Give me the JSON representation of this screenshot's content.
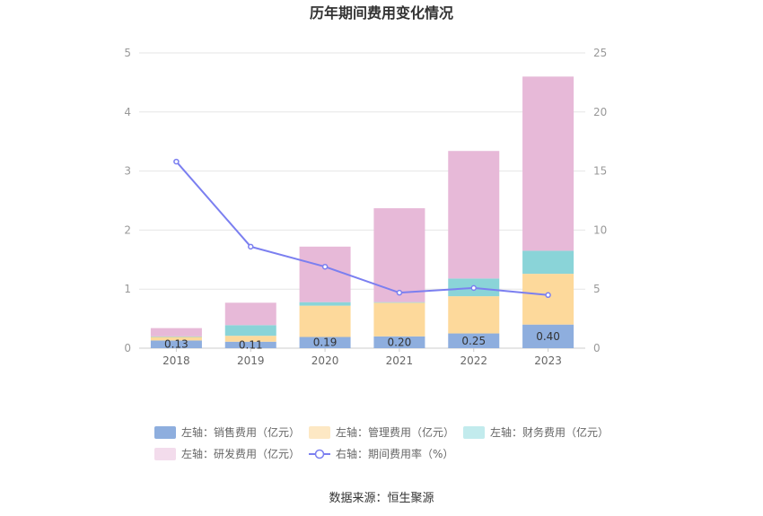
{
  "chart_data": {
    "type": "bar",
    "title": "历年期间费用变化情况",
    "categories": [
      "2018",
      "2019",
      "2020",
      "2021",
      "2022",
      "2023"
    ],
    "y_left": {
      "ticks": [
        "0",
        "1",
        "2",
        "3",
        "4",
        "5"
      ],
      "range": [
        0,
        5
      ]
    },
    "y_right": {
      "ticks": [
        "0",
        "5",
        "10",
        "15",
        "20",
        "25"
      ],
      "range": [
        0,
        25
      ]
    },
    "stacked_series": [
      {
        "name": "左轴：销售费用（亿元）",
        "color": "#8eaede",
        "legend_color": "#8eaede",
        "values": [
          0.13,
          0.11,
          0.19,
          0.2,
          0.25,
          0.4
        ],
        "labels": [
          "0.13",
          "0.11",
          "0.19",
          "0.20",
          "0.25",
          "0.40"
        ]
      },
      {
        "name": "左轴：管理费用（亿元）",
        "color": "#fdd99b",
        "legend_color": "#fde8c4",
        "values": [
          0.06,
          0.1,
          0.53,
          0.57,
          0.63,
          0.86
        ]
      },
      {
        "name": "左轴：财务费用（亿元）",
        "color": "#8ad4d8",
        "legend_color": "#c2ebed",
        "values": [
          0.01,
          0.18,
          0.06,
          0.01,
          0.3,
          0.39
        ]
      },
      {
        "name": "左轴：研发费用（亿元）",
        "color": "#e7b9d8",
        "legend_color": "#f3dcec",
        "values": [
          0.14,
          0.38,
          0.94,
          1.59,
          2.16,
          2.95
        ]
      }
    ],
    "line_series": {
      "name": "右轴：期间费用率（%）",
      "color": "#7b7ff0",
      "axis": "right",
      "values": [
        15.8,
        8.6,
        6.9,
        4.7,
        5.1,
        4.5
      ]
    },
    "legend_position": "bottom",
    "grid": true
  },
  "source_text": "数据来源：恒生聚源"
}
